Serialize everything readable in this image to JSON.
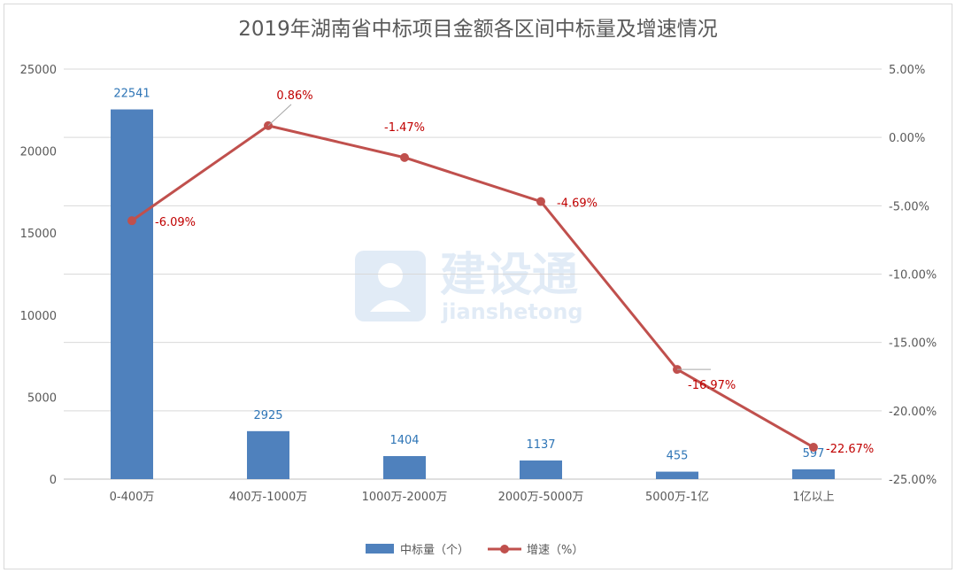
{
  "chart_data": {
    "type": "bar",
    "title": "2019年湖南省中标项目金额各区间中标量及增速情况",
    "categories": [
      "0-400万",
      "400万-1000万",
      "1000万-2000万",
      "2000万-5000万",
      "5000万-1亿",
      "1亿以上"
    ],
    "series": [
      {
        "name": "中标量（个）",
        "type": "bar",
        "axis": "left",
        "values": [
          22541,
          2925,
          1404,
          1137,
          455,
          597
        ],
        "labels": [
          "22541",
          "2925",
          "1404",
          "1137",
          "455",
          "597"
        ]
      },
      {
        "name": "增速（%）",
        "type": "line",
        "axis": "right",
        "values": [
          -6.09,
          0.86,
          -1.47,
          -4.69,
          -16.97,
          -22.67
        ],
        "labels": [
          "-6.09%",
          "0.86%",
          "-1.47%",
          "-4.69%",
          "-16.97%",
          "-22.67%"
        ]
      }
    ],
    "y_left": {
      "ylim": [
        0,
        25000
      ],
      "tick_labels": [
        "0",
        "5000",
        "10000",
        "15000",
        "20000",
        "25000"
      ]
    },
    "y_right": {
      "ylim": [
        -25,
        5
      ],
      "tick_labels": [
        "-25.00%",
        "-20.00%",
        "-15.00%",
        "-10.00%",
        "-5.00%",
        "0.00%",
        "5.00%"
      ]
    },
    "grid": true,
    "legend": "bottom",
    "colors": {
      "bar": "#4f81bd",
      "line": "#c0504d",
      "bar_label": "#2e75b6",
      "line_label": "#c00000"
    }
  },
  "watermark": {
    "main": "建设通",
    "sub": "jianshetong"
  }
}
